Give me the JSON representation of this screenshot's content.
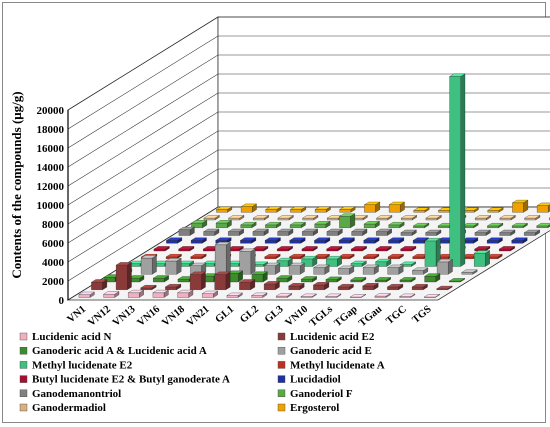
{
  "chart_data": {
    "type": "bar",
    "ylabel": "Contents of the compounds (μg/g)",
    "ylim": [
      0,
      20000
    ],
    "yticks": [
      0,
      2000,
      4000,
      6000,
      8000,
      10000,
      12000,
      14000,
      16000,
      18000,
      20000
    ],
    "categories": [
      "VN1",
      "VN12",
      "VN13",
      "VN16",
      "VN18",
      "VN21",
      "GL1",
      "GL2",
      "GL3",
      "VN10",
      "TGLs",
      "TGap",
      "TGau",
      "TGC",
      "TGS"
    ],
    "legend_position": "bottom",
    "grid": true,
    "series": [
      {
        "name": "Lucidenic acid N",
        "color": "#f0b0c0",
        "values": [
          300,
          350,
          500,
          500,
          500,
          400,
          200,
          200,
          150,
          100,
          100,
          50,
          150,
          100,
          50
        ]
      },
      {
        "name": "Lucidenic acid E2",
        "color": "#8b3a3a",
        "values": [
          800,
          2600,
          200,
          300,
          1600,
          1600,
          800,
          600,
          400,
          500,
          300,
          400,
          300,
          300,
          100
        ]
      },
      {
        "name": "Ganoderic acid A & Lucidenic acid A",
        "color": "#3c8c2c",
        "values": [
          500,
          400,
          400,
          300,
          600,
          900,
          800,
          400,
          300,
          250,
          200,
          200,
          200,
          600,
          100
        ]
      },
      {
        "name": "Ganoderic acid E",
        "color": "#a0a0a0",
        "values": [
          300,
          1700,
          1400,
          900,
          3100,
          2400,
          900,
          900,
          700,
          600,
          700,
          700,
          400,
          1300,
          200
        ]
      },
      {
        "name": "Methyl lucidenate E2",
        "color": "#40c080",
        "values": [
          300,
          300,
          300,
          300,
          300,
          200,
          600,
          800,
          800,
          300,
          500,
          200,
          2700,
          20000,
          1400
        ]
      },
      {
        "name": "Methyl lucidenate A",
        "color": "#c03020",
        "values": [
          200,
          200,
          200,
          200,
          200,
          200,
          200,
          200,
          200,
          200,
          200,
          200,
          200,
          200,
          200
        ]
      },
      {
        "name": "Butyl lucidenate  E2 & Butyl ganoderate A",
        "color": "#a01030",
        "values": [
          200,
          200,
          200,
          200,
          200,
          200,
          200,
          200,
          200,
          200,
          200,
          200,
          200,
          200,
          200
        ]
      },
      {
        "name": "Lucidadiol",
        "color": "#2030a0",
        "values": [
          300,
          300,
          300,
          300,
          300,
          300,
          300,
          300,
          300,
          300,
          300,
          300,
          300,
          300,
          300
        ]
      },
      {
        "name": "Ganodemanontriol",
        "color": "#808080",
        "values": [
          600,
          400,
          400,
          400,
          400,
          400,
          400,
          400,
          400,
          300,
          300,
          300,
          300,
          300,
          300
        ]
      },
      {
        "name": "Ganoderiol F",
        "color": "#5aa84a",
        "values": [
          500,
          500,
          300,
          300,
          300,
          400,
          1200,
          400,
          300,
          200,
          200,
          200,
          200,
          200,
          200
        ]
      },
      {
        "name": "Ganodermadiol",
        "color": "#d8b080",
        "values": [
          200,
          200,
          200,
          200,
          200,
          200,
          200,
          200,
          200,
          200,
          200,
          200,
          200,
          200,
          200
        ]
      },
      {
        "name": "Ergosterol",
        "color": "#f0a000",
        "values": [
          300,
          600,
          300,
          300,
          300,
          300,
          800,
          800,
          200,
          200,
          200,
          200,
          1000,
          700,
          200
        ]
      }
    ]
  }
}
